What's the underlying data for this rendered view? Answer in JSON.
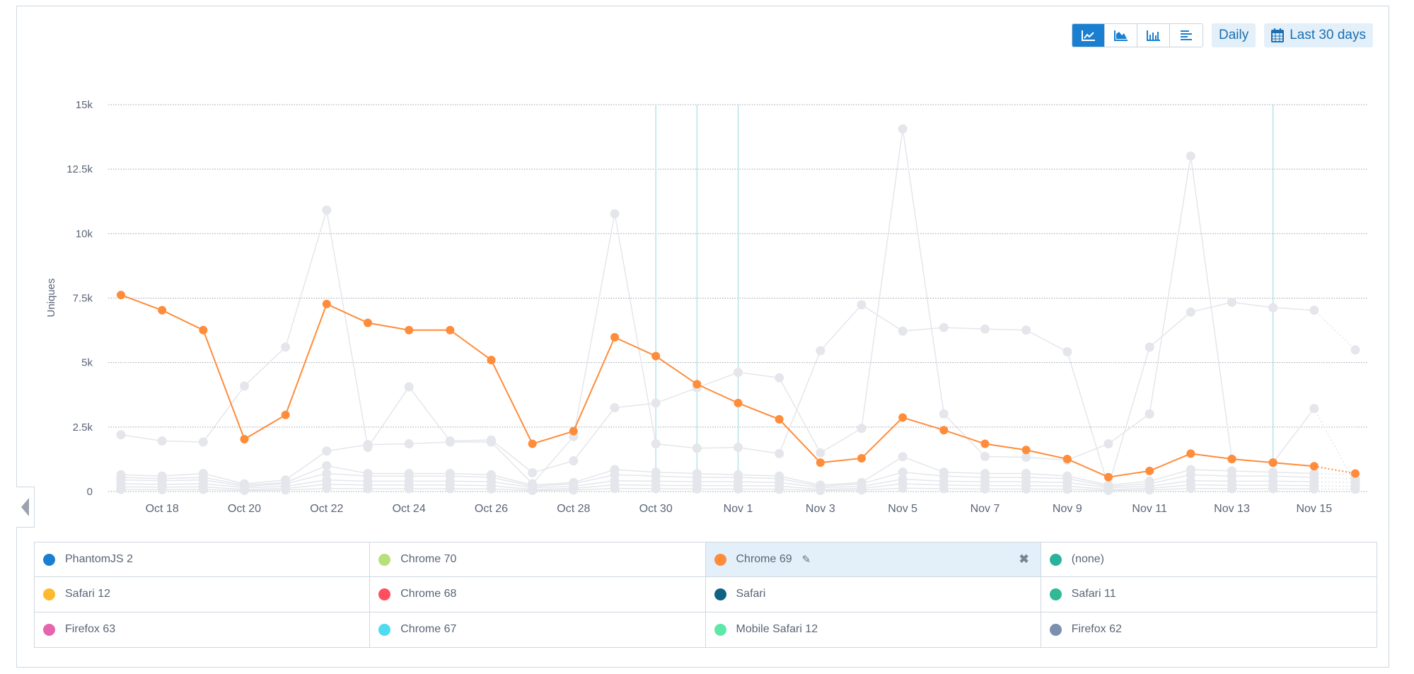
{
  "toolbar": {
    "chart_types": [
      {
        "icon": "line-chart-icon",
        "active": true
      },
      {
        "icon": "area-chart-icon",
        "active": false
      },
      {
        "icon": "bar-chart-icon",
        "active": false
      },
      {
        "icon": "horizontal-bar-icon",
        "active": false
      }
    ],
    "interval": "Daily",
    "date_range": "Last 30 days",
    "date_range_icon": "calendar-icon"
  },
  "chart_data": {
    "type": "line",
    "ylabel": "Uniques",
    "ylim": [
      0,
      15000
    ],
    "yticks": [
      "0",
      "2.5k",
      "5k",
      "7.5k",
      "10k",
      "12.5k",
      "15k"
    ],
    "ytick_values": [
      0,
      2500,
      5000,
      7500,
      10000,
      12500,
      15000
    ],
    "x": [
      "Oct 17",
      "Oct 18",
      "Oct 19",
      "Oct 20",
      "Oct 21",
      "Oct 22",
      "Oct 23",
      "Oct 24",
      "Oct 25",
      "Oct 26",
      "Oct 27",
      "Oct 28",
      "Oct 29",
      "Oct 30",
      "Oct 31",
      "Nov 1",
      "Nov 2",
      "Nov 3",
      "Nov 4",
      "Nov 5",
      "Nov 6",
      "Nov 7",
      "Nov 8",
      "Nov 9",
      "Nov 10",
      "Nov 11",
      "Nov 12",
      "Nov 13",
      "Nov 14",
      "Nov 15",
      "Nov 16"
    ],
    "xticks": [
      "Oct 18",
      "Oct 20",
      "Oct 22",
      "Oct 24",
      "Oct 26",
      "Oct 28",
      "Oct 30",
      "Nov 1",
      "Nov 3",
      "Nov 5",
      "Nov 7",
      "Nov 9",
      "Nov 11",
      "Nov 13",
      "Nov 15"
    ],
    "annotation_dates": [
      "Oct 30",
      "Oct 31",
      "Nov 1",
      "Nov 14"
    ],
    "grid": true,
    "highlight_color": "#ff8c3a",
    "muted_color": "#e4e6eb",
    "series": [
      {
        "name": "Chrome 69",
        "highlighted": true,
        "values": [
          7620,
          7030,
          6260,
          2030,
          2970,
          7270,
          6540,
          6260,
          6260,
          5100,
          1850,
          2340,
          5980,
          5250,
          4160,
          3430,
          2800,
          1120,
          1290,
          2870,
          2380,
          1850,
          1610,
          1260,
          560,
          800,
          1470,
          1260,
          1120,
          980,
          700
        ]
      },
      {
        "highlighted": false,
        "values": [
          2200,
          1960,
          1920,
          4090,
          5600,
          10910,
          1710,
          4060,
          1960,
          2000,
          730,
          1190,
          3250,
          3430,
          4020,
          4620,
          4410,
          1500,
          2450,
          14060,
          3010,
          1360,
          1330,
          1220,
          1850,
          3010,
          13010,
          1260,
          1120,
          3220,
          300
        ]
      },
      {
        "highlighted": false,
        "values": [
          650,
          600,
          700,
          300,
          450,
          1570,
          1820,
          1850,
          1920,
          1920,
          300,
          2130,
          10770,
          1850,
          1680,
          1710,
          1470,
          5460,
          7240,
          6220,
          6360,
          6300,
          6260,
          5420,
          200,
          5600,
          6960,
          7340,
          7130,
          7030,
          5490
        ]
      },
      {
        "highlighted": false,
        "values": [
          550,
          500,
          550,
          250,
          350,
          1000,
          700,
          700,
          700,
          650,
          250,
          350,
          850,
          750,
          700,
          650,
          600,
          250,
          350,
          1350,
          750,
          700,
          700,
          600,
          250,
          400,
          850,
          800,
          750,
          700,
          650
        ]
      },
      {
        "highlighted": false,
        "values": [
          450,
          420,
          450,
          200,
          300,
          700,
          600,
          600,
          600,
          550,
          200,
          300,
          650,
          600,
          550,
          550,
          500,
          200,
          300,
          750,
          600,
          550,
          550,
          500,
          200,
          300,
          650,
          600,
          600,
          550,
          500
        ]
      },
      {
        "highlighted": false,
        "values": [
          300,
          280,
          300,
          150,
          200,
          450,
          400,
          400,
          400,
          380,
          150,
          200,
          420,
          400,
          380,
          380,
          350,
          150,
          200,
          480,
          400,
          380,
          380,
          350,
          150,
          200,
          420,
          400,
          400,
          380,
          350
        ]
      },
      {
        "highlighted": false,
        "values": [
          180,
          170,
          180,
          80,
          120,
          280,
          250,
          250,
          250,
          230,
          80,
          120,
          260,
          240,
          230,
          230,
          210,
          80,
          120,
          300,
          250,
          230,
          230,
          210,
          80,
          120,
          260,
          240,
          240,
          230,
          200
        ]
      },
      {
        "highlighted": false,
        "values": [
          80,
          70,
          80,
          40,
          60,
          120,
          110,
          110,
          110,
          100,
          40,
          60,
          120,
          110,
          100,
          100,
          90,
          40,
          60,
          130,
          110,
          100,
          100,
          90,
          40,
          60,
          120,
          110,
          110,
          100,
          90
        ]
      }
    ]
  },
  "legend": [
    {
      "label": "PhantomJS 2",
      "color": "#1a7fd0"
    },
    {
      "label": "Chrome 70",
      "color": "#b8e07a"
    },
    {
      "label": "Chrome 69",
      "color": "#ff8c3a",
      "selected": true
    },
    {
      "label": "(none)",
      "color": "#2bb39a"
    },
    {
      "label": "Safari 12",
      "color": "#ffb92e"
    },
    {
      "label": "Chrome 68",
      "color": "#ff4f5e"
    },
    {
      "label": "Safari",
      "color": "#0f6282"
    },
    {
      "label": "Safari 11",
      "color": "#2fba95"
    },
    {
      "label": "Firefox 63",
      "color": "#e664ad"
    },
    {
      "label": "Chrome 67",
      "color": "#4fdcf0"
    },
    {
      "label": "Mobile Safari 12",
      "color": "#5ee8a8"
    },
    {
      "label": "Firefox 62",
      "color": "#7b8fae"
    }
  ]
}
